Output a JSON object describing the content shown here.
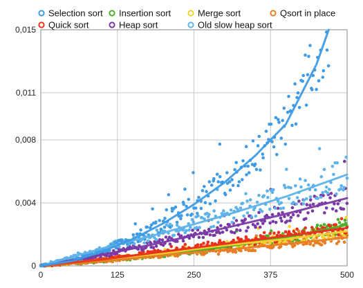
{
  "chart_data": {
    "type": "scatter",
    "title": "",
    "xlabel": "",
    "ylabel": "",
    "xlim": [
      0,
      500
    ],
    "ylim": [
      0,
      0.015
    ],
    "x_ticks": [
      0,
      125,
      250,
      375,
      500
    ],
    "x_tick_labels": [
      "0",
      "125",
      "250",
      "375",
      "500"
    ],
    "y_ticks": [
      0,
      0.004,
      0.008,
      0.011,
      0.015
    ],
    "y_tick_labels": [
      "0",
      "0,004",
      "0,008",
      "0,011",
      "0,015"
    ],
    "grid": true,
    "legend_position": "top",
    "trendlines": true,
    "series": [
      {
        "name": "Selection sort",
        "color": "#3f9be4",
        "x_range": [
          0,
          470
        ],
        "trend": [
          [
            0,
            0
          ],
          [
            50,
            0.0003
          ],
          [
            100,
            0.0009
          ],
          [
            150,
            0.0017
          ],
          [
            200,
            0.0027
          ],
          [
            250,
            0.0039
          ],
          [
            300,
            0.0053
          ],
          [
            350,
            0.007
          ],
          [
            400,
            0.009
          ],
          [
            450,
            0.0128
          ],
          [
            470,
            0.015
          ]
        ]
      },
      {
        "name": "Quick sort",
        "color": "#e8321c",
        "x_range": [
          0,
          500
        ],
        "trend": [
          [
            0,
            0
          ],
          [
            100,
            0.0004
          ],
          [
            200,
            0.0009
          ],
          [
            300,
            0.0014
          ],
          [
            400,
            0.0019
          ],
          [
            500,
            0.0024
          ]
        ]
      },
      {
        "name": "Insertion sort",
        "color": "#4caf2a",
        "x_range": [
          0,
          500
        ],
        "trend": [
          [
            0,
            0
          ],
          [
            100,
            0.0003
          ],
          [
            200,
            0.0007
          ],
          [
            300,
            0.0012
          ],
          [
            400,
            0.0018
          ],
          [
            500,
            0.0026
          ]
        ]
      },
      {
        "name": "Heap sort",
        "color": "#7a3aa6",
        "x_range": [
          0,
          500
        ],
        "trend": [
          [
            0,
            0
          ],
          [
            100,
            0.0007
          ],
          [
            200,
            0.0015
          ],
          [
            300,
            0.0024
          ],
          [
            400,
            0.0033
          ],
          [
            500,
            0.0043
          ]
        ]
      },
      {
        "name": "Merge sort",
        "color": "#f3d22e",
        "x_range": [
          0,
          500
        ],
        "trend": [
          [
            0,
            0
          ],
          [
            100,
            0.0004
          ],
          [
            200,
            0.0008
          ],
          [
            300,
            0.0013
          ],
          [
            400,
            0.0017
          ],
          [
            500,
            0.0022
          ]
        ]
      },
      {
        "name": "Old slow heap sort",
        "color": "#5fb3e8",
        "x_range": [
          0,
          500
        ],
        "trend": [
          [
            0,
            0
          ],
          [
            100,
            0.0011
          ],
          [
            200,
            0.0021
          ],
          [
            300,
            0.0032
          ],
          [
            400,
            0.0044
          ],
          [
            500,
            0.0058
          ]
        ]
      },
      {
        "name": "Qsort in place",
        "color": "#ea7e24",
        "x_range": [
          0,
          500
        ],
        "trend": [
          [
            0,
            0
          ],
          [
            100,
            0.0003
          ],
          [
            200,
            0.0007
          ],
          [
            300,
            0.001
          ],
          [
            400,
            0.0014
          ],
          [
            500,
            0.0018
          ]
        ]
      }
    ]
  }
}
